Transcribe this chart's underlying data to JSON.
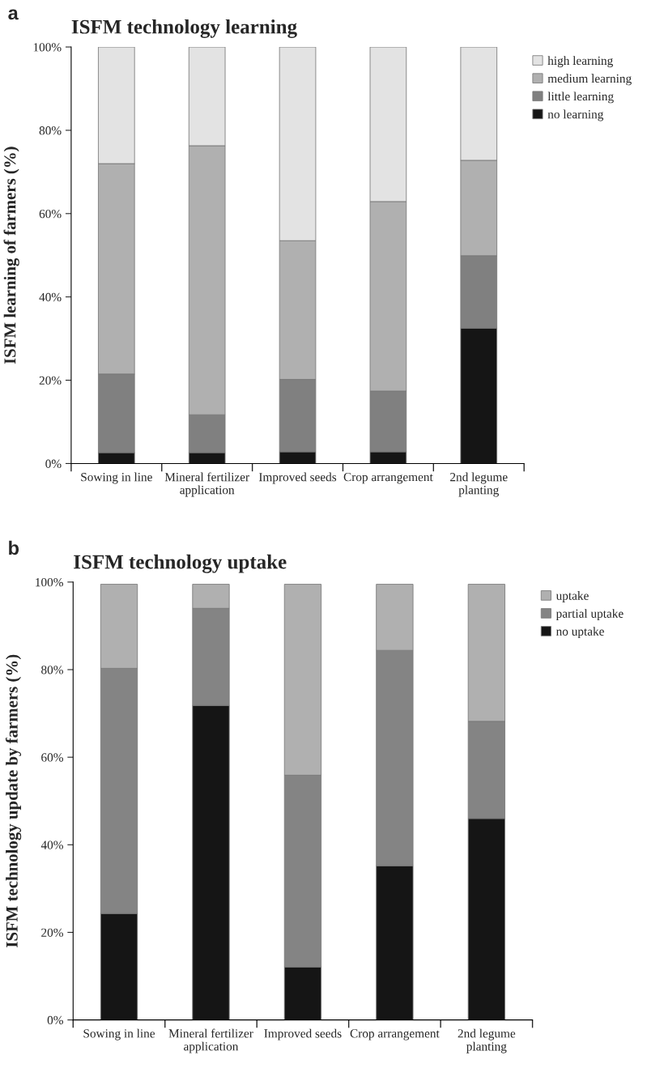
{
  "chart_data": [
    {
      "type": "bar",
      "stacked": true,
      "title": "ISFM technology learning",
      "ylabel": "ISFM learning of farmers (%)",
      "annotations": [
        "a"
      ],
      "categories": [
        "Sowing in line",
        "Mineral fertilizer\napplication",
        "Improved seeds",
        "Crop arrangement",
        "2nd legume\nplanting"
      ],
      "series": [
        {
          "name": "no learning",
          "color": "#151515",
          "values": [
            2.6,
            2.6,
            2.8,
            2.8,
            32.5
          ]
        },
        {
          "name": "little learning",
          "color": "#808080",
          "values": [
            18.9,
            9.1,
            17.4,
            14.6,
            17.4
          ]
        },
        {
          "name": "medium learning",
          "color": "#b0b0b0",
          "values": [
            50.5,
            64.6,
            33.3,
            45.5,
            22.9
          ]
        },
        {
          "name": "high learning",
          "color": "#e3e3e3",
          "values": [
            28.0,
            23.7,
            46.5,
            37.1,
            27.2
          ]
        }
      ],
      "ylim": [
        0,
        100
      ],
      "yticks": [
        {
          "value": 0,
          "label": "0%"
        },
        {
          "value": 20,
          "label": "20%"
        },
        {
          "value": 40,
          "label": "40%"
        },
        {
          "value": 60,
          "label": "60%"
        },
        {
          "value": 80,
          "label": "80%"
        },
        {
          "value": 100,
          "label": "100%"
        }
      ],
      "grid": false,
      "legend": "top right"
    },
    {
      "type": "bar",
      "stacked": true,
      "title": "ISFM technology uptake",
      "ylabel": "ISFM technology update by farmers (%)",
      "annotations": [
        "b"
      ],
      "categories": [
        "Sowing in line",
        "Mineral fertilizer\napplication",
        "Improved seeds",
        "Crop arrangement",
        "2nd legume\nplanting"
      ],
      "series": [
        {
          "name": "no uptake",
          "color": "#151515",
          "values": [
            24.3,
            71.8,
            12.1,
            35.2,
            46.0
          ]
        },
        {
          "name": "partial uptake",
          "color": "#848484",
          "values": [
            56.0,
            22.2,
            43.8,
            49.2,
            22.2
          ]
        },
        {
          "name": "uptake",
          "color": "#b0b0b0",
          "values": [
            19.2,
            5.5,
            43.6,
            15.1,
            31.3
          ]
        }
      ],
      "ylim": [
        0,
        100
      ],
      "yticks": [
        {
          "value": 0,
          "label": "0%"
        },
        {
          "value": 20,
          "label": "20%"
        },
        {
          "value": 40,
          "label": "40%"
        },
        {
          "value": 60,
          "label": "60%"
        },
        {
          "value": 80,
          "label": "80%"
        },
        {
          "value": 100,
          "label": "100%"
        }
      ],
      "grid": false,
      "legend": "top right"
    }
  ]
}
